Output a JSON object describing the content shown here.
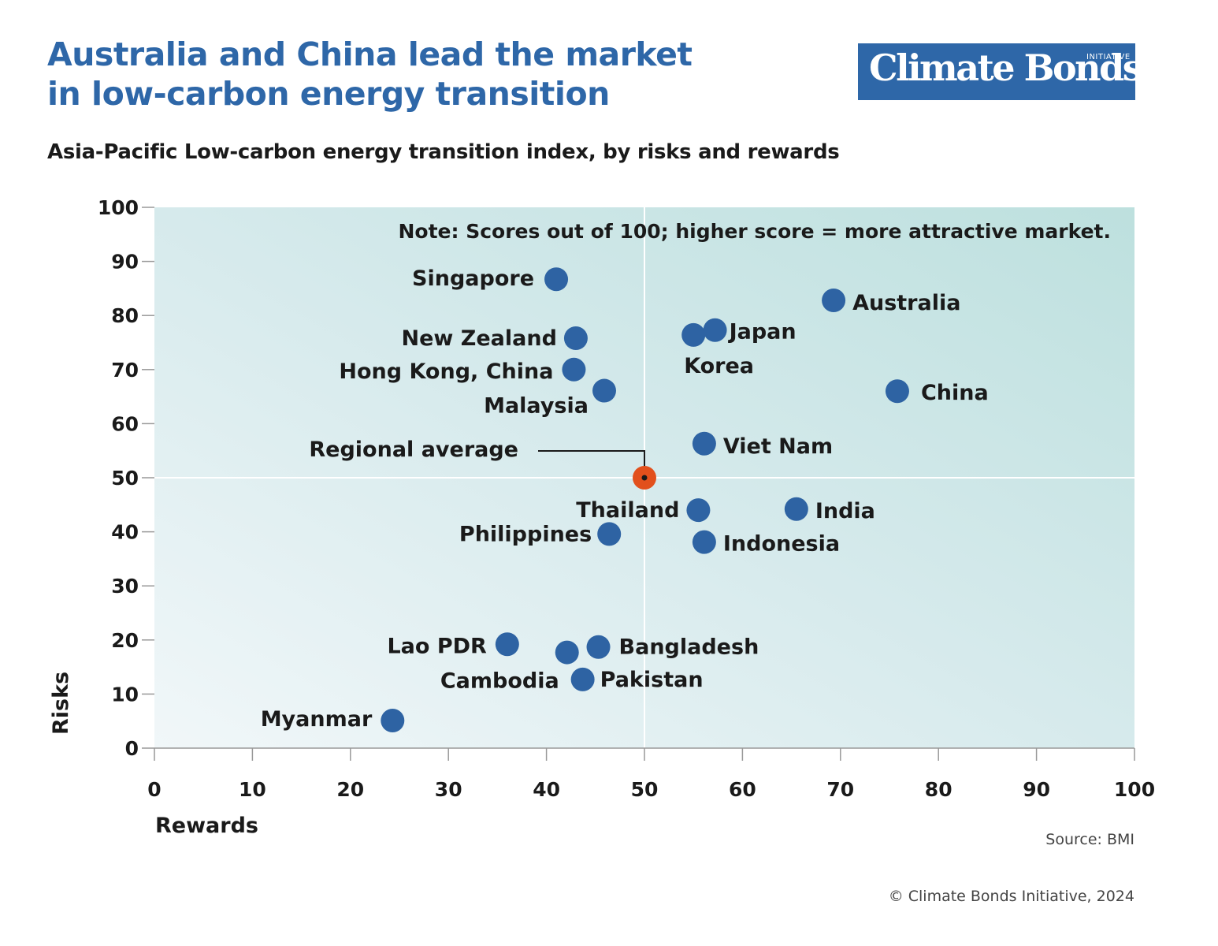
{
  "header": {
    "title_line1": "Australia and China lead the market",
    "title_line2": "in low-carbon energy transition",
    "subtitle": "Asia-Pacific Low-carbon energy transition index, by risks and rewards"
  },
  "logo": {
    "text": "Climate Bonds",
    "small": "INITIATIVE"
  },
  "footer": {
    "source": "Source: BMI",
    "copyright": "© Climate Bonds Initiative, 2024"
  },
  "colors": {
    "accent": "#2e67a8",
    "point": "#2e63a3",
    "average": "#e2501c"
  },
  "chart_data": {
    "type": "scatter",
    "title": "Asia-Pacific Low-carbon energy transition index, by risks and rewards",
    "xlabel": "Rewards",
    "ylabel": "Risks",
    "xlim": [
      0,
      100
    ],
    "ylim": [
      0,
      100
    ],
    "xticks": [
      0,
      10,
      20,
      30,
      40,
      50,
      60,
      70,
      80,
      90,
      100
    ],
    "yticks": [
      0,
      10,
      20,
      30,
      40,
      50,
      60,
      70,
      80,
      90,
      100
    ],
    "note": "Note: Scores out of 100; higher score = more attractive market.",
    "grid": false,
    "reference_lines": {
      "x": 50,
      "y": 50
    },
    "points": [
      {
        "label": "Singapore",
        "x": 41.0,
        "y": 86.7
      },
      {
        "label": "Australia",
        "x": 69.3,
        "y": 82.8
      },
      {
        "label": "New Zealand",
        "x": 43.0,
        "y": 75.8
      },
      {
        "label": "Korea",
        "x": 55.0,
        "y": 76.4
      },
      {
        "label": "Japan",
        "x": 57.2,
        "y": 77.3
      },
      {
        "label": "Hong Kong, China",
        "x": 42.8,
        "y": 70.0
      },
      {
        "label": "Malaysia",
        "x": 45.9,
        "y": 66.1
      },
      {
        "label": "China",
        "x": 75.8,
        "y": 66.0
      },
      {
        "label": "Viet Nam",
        "x": 56.1,
        "y": 56.3
      },
      {
        "label": "Thailand",
        "x": 55.5,
        "y": 44.0
      },
      {
        "label": "India",
        "x": 65.5,
        "y": 44.2
      },
      {
        "label": "Philippines",
        "x": 46.4,
        "y": 39.6
      },
      {
        "label": "Indonesia",
        "x": 56.1,
        "y": 38.1
      },
      {
        "label": "Lao PDR",
        "x": 36.0,
        "y": 19.2
      },
      {
        "label": "Cambodia",
        "x": 42.1,
        "y": 17.7
      },
      {
        "label": "Bangladesh",
        "x": 45.3,
        "y": 18.7
      },
      {
        "label": "Pakistan",
        "x": 43.7,
        "y": 12.7
      },
      {
        "label": "Myanmar",
        "x": 24.3,
        "y": 5.1
      }
    ],
    "average": {
      "label": "Regional average",
      "x": 50,
      "y": 50
    }
  }
}
